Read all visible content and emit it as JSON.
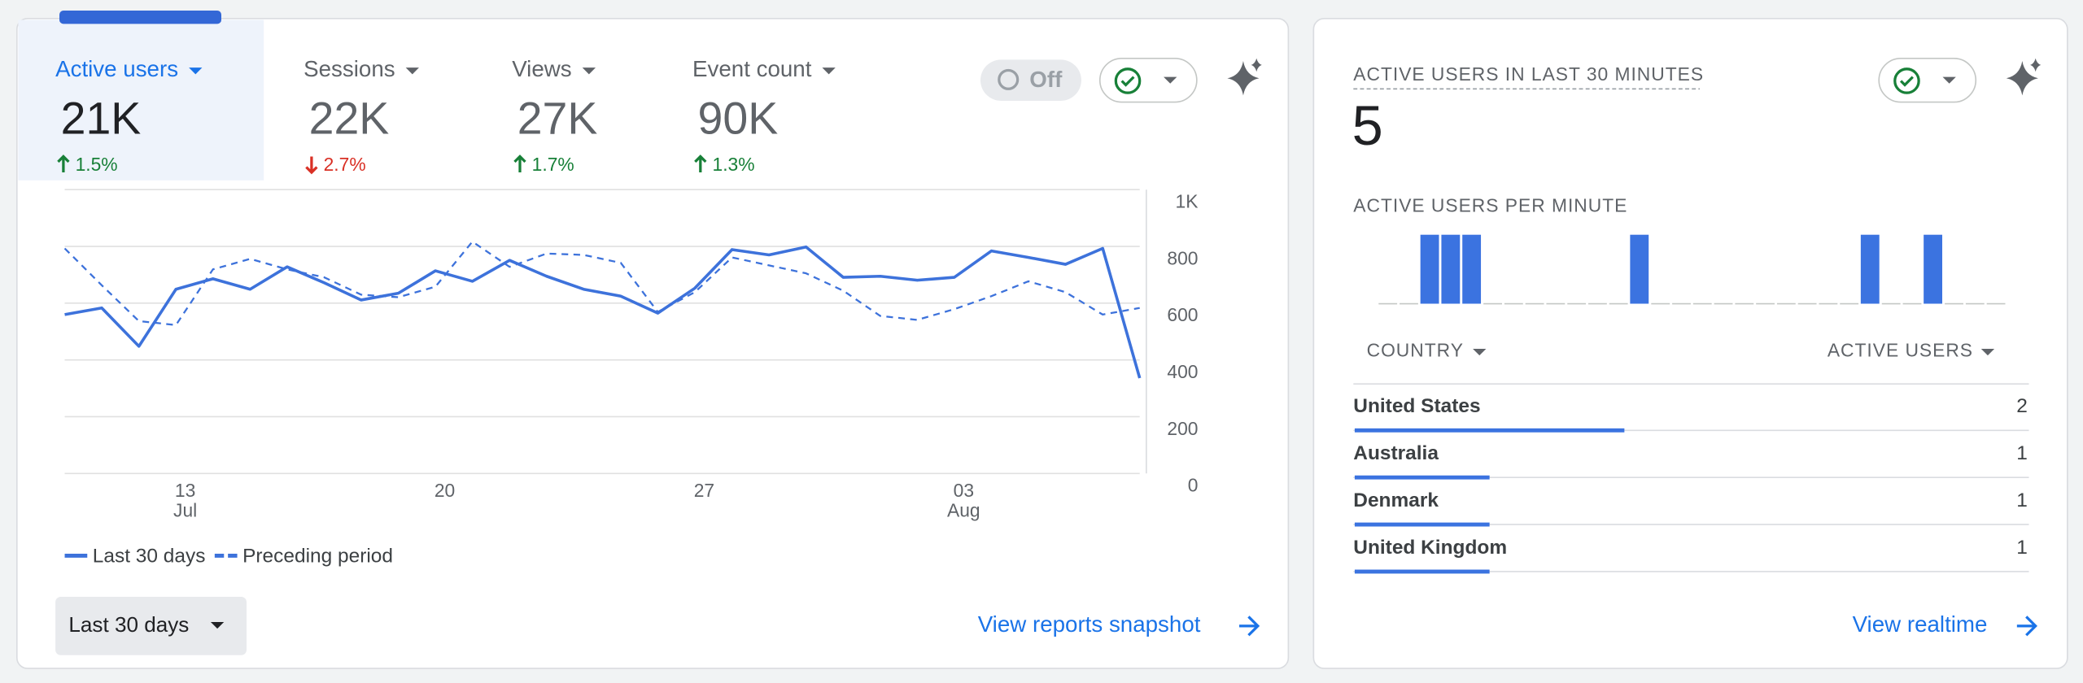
{
  "metrics": [
    {
      "label": "Active users",
      "value": "21K",
      "change": "1.5%",
      "direction": "up"
    },
    {
      "label": "Sessions",
      "value": "22K",
      "change": "2.7%",
      "direction": "down"
    },
    {
      "label": "Views",
      "value": "27K",
      "change": "1.7%",
      "direction": "up"
    },
    {
      "label": "Event count",
      "value": "90K",
      "change": "1.3%",
      "direction": "up"
    }
  ],
  "toggle_label": "Off",
  "chart_data": {
    "type": "line",
    "categories": [
      null,
      null,
      null,
      "13",
      null,
      null,
      null,
      null,
      null,
      null,
      "20",
      null,
      null,
      null,
      null,
      null,
      null,
      "27",
      null,
      null,
      null,
      null,
      null,
      null,
      "03",
      null,
      null,
      null,
      null,
      null
    ],
    "subcategories": [
      null,
      null,
      null,
      "Jul",
      null,
      null,
      null,
      null,
      null,
      null,
      null,
      null,
      null,
      null,
      null,
      null,
      null,
      null,
      null,
      null,
      null,
      null,
      null,
      null,
      "Aug",
      null,
      null,
      null,
      null,
      null
    ],
    "series": [
      {
        "name": "Last 30 days",
        "color": "#3d72db",
        "dashed": false,
        "values": [
          560,
          583,
          448,
          649,
          686,
          649,
          728,
          672,
          611,
          635,
          714,
          677,
          751,
          695,
          649,
          625,
          565,
          653,
          789,
          770,
          798,
          691,
          695,
          681,
          691,
          784,
          761,
          737,
          793,
          336
        ]
      },
      {
        "name": "Preceding period",
        "color": "#3d72db",
        "dashed": true,
        "values": [
          793,
          663,
          537,
          523,
          719,
          756,
          719,
          691,
          630,
          621,
          658,
          817,
          728,
          775,
          770,
          742,
          569,
          639,
          761,
          733,
          705,
          644,
          555,
          541,
          579,
          625,
          677,
          639,
          560,
          583
        ]
      }
    ],
    "ylim": [
      0,
      1000
    ],
    "yticks": [
      0,
      200,
      400,
      600,
      800,
      {
        "value": 1000,
        "label": "1K"
      }
    ],
    "grid": true
  },
  "date_range": "Last 30 days",
  "reports_link": "View reports snapshot",
  "realtime": {
    "title": "ACTIVE USERS IN LAST 30 MINUTES",
    "total": 5,
    "per_minute_title": "ACTIVE USERS PER MINUTE",
    "color": "#3b73e0",
    "per_minute": [
      0,
      0,
      1,
      1,
      1,
      0,
      0,
      0,
      0,
      0,
      0,
      0,
      1,
      0,
      0,
      0,
      0,
      0,
      0,
      0,
      0,
      0,
      0,
      1,
      0,
      0,
      1,
      0,
      0,
      0
    ],
    "table_headers": [
      "COUNTRY",
      "ACTIVE USERS"
    ],
    "countries": [
      {
        "name": "United States",
        "value": 2
      },
      {
        "name": "Australia",
        "value": 1
      },
      {
        "name": "Denmark",
        "value": 1
      },
      {
        "name": "United Kingdom",
        "value": 1
      }
    ],
    "link": "View realtime"
  }
}
